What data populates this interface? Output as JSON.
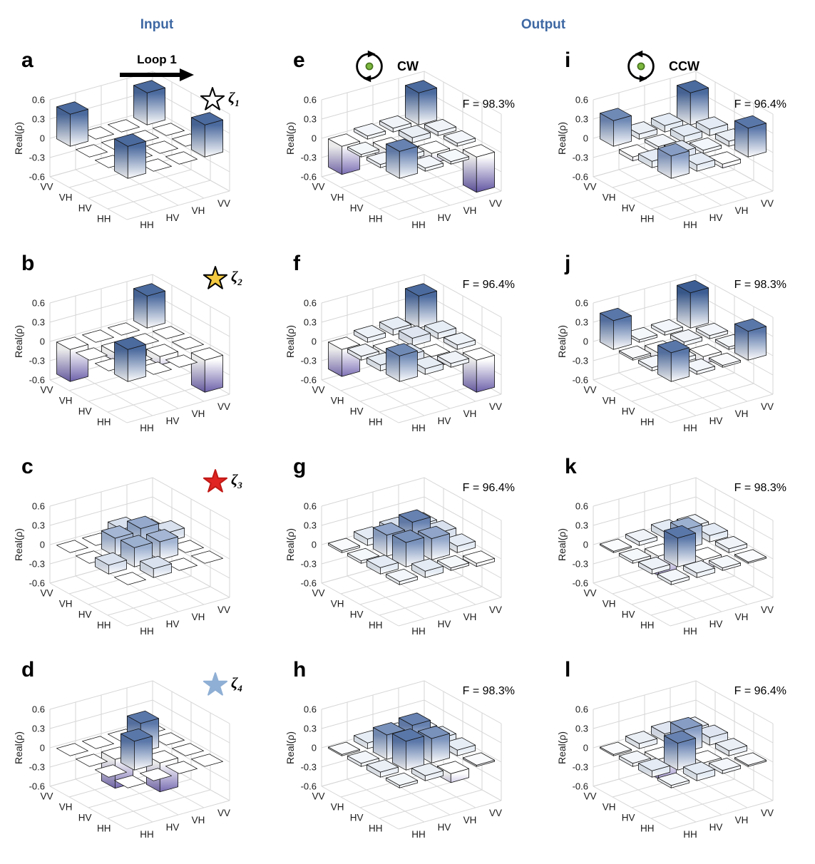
{
  "header": {
    "input_label": "Input",
    "output_label": "Output"
  },
  "annotations": {
    "loop_label": "Loop 1",
    "cw_label": "CW",
    "ccw_label": "CCW"
  },
  "axis": {
    "z_label": "Real(ρ)",
    "z_ticks": [
      "0.6",
      "0.3",
      "0",
      "-0.3",
      "-0.6"
    ],
    "z_tick_values": [
      0.6,
      0.3,
      0,
      -0.3,
      -0.6
    ],
    "basis_labels": [
      "HH",
      "HV",
      "VH",
      "VV"
    ]
  },
  "palette": {
    "header_color": "#3e68a3",
    "bar_positive_top": "#2b4d86",
    "bar_negative_deep": "#584d9b",
    "grid_line": "#d6d6d6",
    "rot_dot_fill": "#7cb83f",
    "rot_dot_stroke": "#49761f",
    "star_open_fill": "#ffffff",
    "star_gold_fill": "#f3c93f",
    "star_red_fill": "#e02421",
    "star_blue_fill": "#8fafd4"
  },
  "chart_data": {
    "type": "bar3d",
    "zlim": [
      -0.6,
      0.6
    ],
    "row_axis": [
      "HH",
      "HV",
      "VH",
      "VV"
    ],
    "col_axis": [
      "HH",
      "HV",
      "VH",
      "VV"
    ],
    "value_label": "Real(ρ)",
    "panels": [
      {
        "letter": "a",
        "group": "input",
        "zeta": {
          "symbol": "ζ",
          "sub": "1"
        },
        "star": {
          "fill": "#ffffff",
          "stroke": "#000000"
        },
        "matrix": [
          [
            0.5,
            0,
            0,
            0.5
          ],
          [
            0,
            0,
            0,
            0
          ],
          [
            0,
            0,
            0,
            0
          ],
          [
            0.5,
            0,
            0,
            0.5
          ]
        ]
      },
      {
        "letter": "e",
        "group": "output-cw",
        "fidelity_label": "F = 98.3%",
        "matrix": [
          [
            0.42,
            0.05,
            0.04,
            -0.55
          ],
          [
            0.05,
            0.07,
            -0.16,
            0.05
          ],
          [
            0.04,
            -0.16,
            0.08,
            0.06
          ],
          [
            -0.44,
            0.05,
            0.06,
            0.5
          ]
        ]
      },
      {
        "letter": "i",
        "group": "output-ccw",
        "fidelity_label": "F = 96.4%",
        "matrix": [
          [
            0.35,
            0.1,
            -0.06,
            0.45
          ],
          [
            0.1,
            0.12,
            0.05,
            0.08
          ],
          [
            -0.06,
            0.05,
            0.1,
            0.1
          ],
          [
            0.4,
            0.08,
            0.1,
            0.5
          ]
        ]
      },
      {
        "letter": "b",
        "group": "input",
        "zeta": {
          "symbol": "ζ",
          "sub": "2"
        },
        "star": {
          "fill": "#f3c93f",
          "stroke": "#000000"
        },
        "matrix": [
          [
            0.5,
            0,
            0,
            -0.5
          ],
          [
            0,
            0,
            -0.13,
            0
          ],
          [
            0,
            -0.13,
            0,
            0
          ],
          [
            -0.5,
            0,
            0,
            0.5
          ]
        ]
      },
      {
        "letter": "f",
        "group": "output-cw",
        "fidelity_label": "F = 96.4%",
        "matrix": [
          [
            0.4,
            0.09,
            0.06,
            -0.5
          ],
          [
            0.09,
            0.12,
            -0.18,
            0.07
          ],
          [
            0.06,
            -0.18,
            0.12,
            0.09
          ],
          [
            -0.42,
            0.07,
            0.09,
            0.5
          ]
        ]
      },
      {
        "letter": "j",
        "group": "output-ccw",
        "fidelity_label": "F = 98.3%",
        "matrix": [
          [
            0.45,
            0.05,
            0.03,
            0.45
          ],
          [
            0.05,
            0.06,
            -0.11,
            0.04
          ],
          [
            0.03,
            -0.11,
            0.06,
            0.05
          ],
          [
            0.45,
            0.04,
            0.05,
            0.55
          ]
        ]
      },
      {
        "letter": "c",
        "group": "input",
        "zeta": {
          "symbol": "ζ",
          "sub": "3"
        },
        "star": {
          "fill": "#e02421",
          "stroke": "#c11916"
        },
        "matrix": [
          [
            0,
            0.14,
            0,
            0
          ],
          [
            0.14,
            0.3,
            0.28,
            0
          ],
          [
            0,
            0.28,
            0.32,
            0.14
          ],
          [
            0,
            0,
            0.14,
            0
          ]
        ]
      },
      {
        "letter": "g",
        "group": "output-cw",
        "fidelity_label": "F = 96.4%",
        "matrix": [
          [
            0.05,
            0.1,
            0.04,
            -0.05
          ],
          [
            0.1,
            0.38,
            0.33,
            0.1
          ],
          [
            0.04,
            0.33,
            0.42,
            0.14
          ],
          [
            0.03,
            0.1,
            0.14,
            0.1
          ]
        ]
      },
      {
        "letter": "k",
        "group": "output-ccw",
        "fidelity_label": "F = 98.3%",
        "matrix": [
          [
            0.05,
            0.07,
            0.04,
            0.02
          ],
          [
            0.07,
            0.45,
            -0.15,
            0.06
          ],
          [
            0.04,
            -0.3,
            0.3,
            0.1
          ],
          [
            0.02,
            0.06,
            0.1,
            0.07
          ]
        ]
      },
      {
        "letter": "d",
        "group": "input",
        "zeta": {
          "symbol": "ζ",
          "sub": "4"
        },
        "star": {
          "fill": "#8fafd4",
          "stroke": "#8fafd4"
        },
        "matrix": [
          [
            0,
            0,
            0,
            0
          ],
          [
            0,
            0.45,
            -0.45,
            0
          ],
          [
            0,
            -0.45,
            0.45,
            0
          ],
          [
            0,
            0,
            0,
            0
          ]
        ]
      },
      {
        "letter": "h",
        "group": "output-cw",
        "fidelity_label": "F = 98.3%",
        "matrix": [
          [
            0.04,
            0.08,
            -0.14,
            0.02
          ],
          [
            0.08,
            0.45,
            0.38,
            0.09
          ],
          [
            0.05,
            0.38,
            0.42,
            0.1
          ],
          [
            0.02,
            0.09,
            0.1,
            0.06
          ]
        ]
      },
      {
        "letter": "l",
        "group": "output-ccw",
        "fidelity_label": "F = 96.4%",
        "matrix": [
          [
            0.04,
            0.1,
            0.05,
            0.02
          ],
          [
            0.1,
            0.42,
            -0.12,
            0.08
          ],
          [
            0.05,
            -0.3,
            0.35,
            0.12
          ],
          [
            0.02,
            0.08,
            0.12,
            0.08
          ]
        ]
      }
    ]
  }
}
